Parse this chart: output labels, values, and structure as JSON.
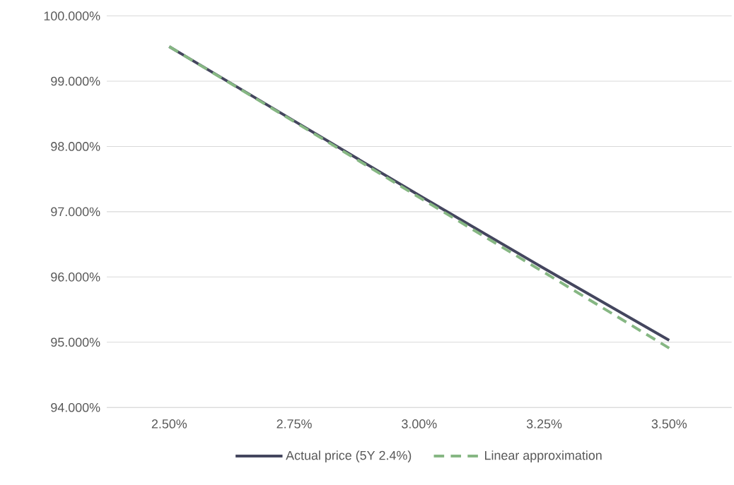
{
  "chart_data": {
    "type": "line",
    "x": [
      2.5,
      2.75,
      3.0,
      3.25,
      3.5
    ],
    "series": [
      {
        "name": "Actual price (5Y 2.4%)",
        "color": "#44465e",
        "line_style": "solid",
        "values": [
          99.53,
          98.39,
          97.25,
          96.13,
          95.03
        ]
      },
      {
        "name": "Linear approximation",
        "color": "#86b783",
        "line_style": "dashed",
        "values": [
          99.53,
          98.38,
          97.22,
          96.07,
          94.91
        ]
      }
    ],
    "xlim": [
      2.375,
      3.625
    ],
    "xticks": [
      {
        "value": 2.5,
        "label": "2.50%"
      },
      {
        "value": 2.75,
        "label": "2.75%"
      },
      {
        "value": 3.0,
        "label": "3.00%"
      },
      {
        "value": 3.25,
        "label": "3.25%"
      },
      {
        "value": 3.5,
        "label": "3.50%"
      }
    ],
    "ylim": [
      94,
      100
    ],
    "yticks": [
      {
        "value": 94,
        "label": "94.000%"
      },
      {
        "value": 95,
        "label": "95.000%"
      },
      {
        "value": 96,
        "label": "96.000%"
      },
      {
        "value": 97,
        "label": "97.000%"
      },
      {
        "value": 98,
        "label": "98.000%"
      },
      {
        "value": 99,
        "label": "99.000%"
      },
      {
        "value": 100,
        "label": "100.000%"
      }
    ],
    "grid": "y",
    "legend": "bottom"
  }
}
